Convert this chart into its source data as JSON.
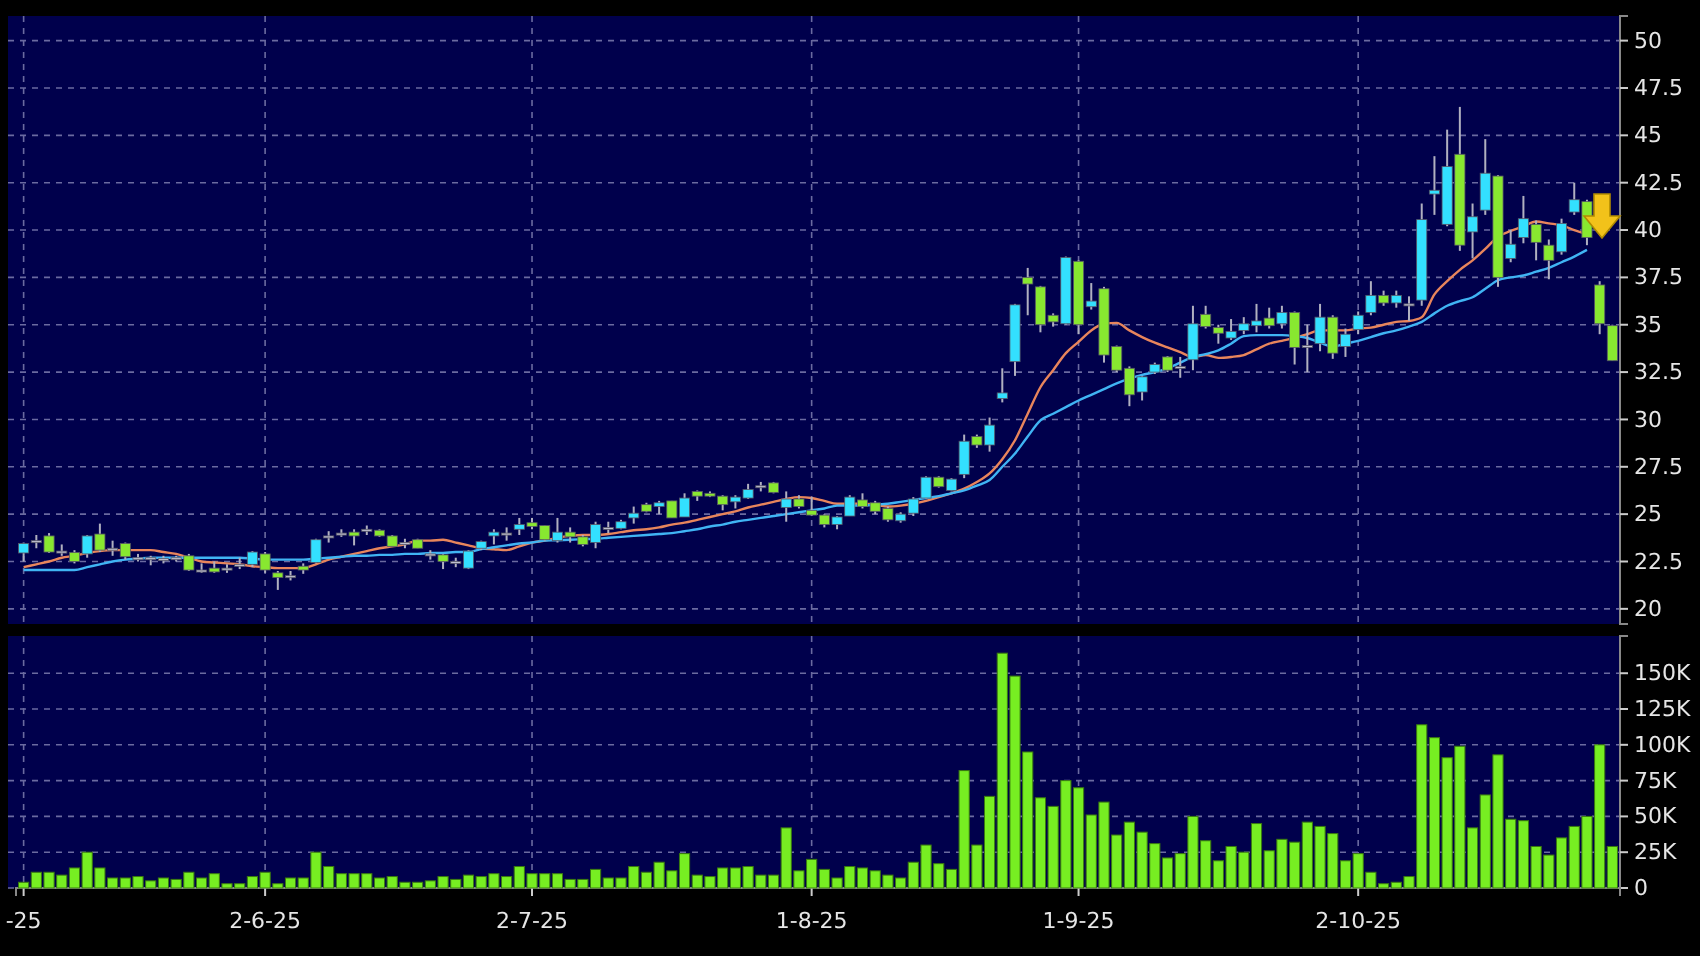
{
  "chart_data": [
    {
      "type": "candlestick",
      "tick_labels": "y",
      "grid": true,
      "categories": [
        null,
        null,
        null,
        null,
        null,
        null,
        null,
        null,
        null,
        null,
        null,
        null,
        null,
        null,
        null,
        null,
        null,
        null,
        null,
        null,
        null,
        null,
        null,
        null,
        null,
        null,
        null,
        null,
        null,
        null,
        null,
        null,
        null,
        null,
        null,
        null,
        null,
        null,
        null,
        null,
        null,
        null,
        null,
        null,
        null,
        null,
        null,
        null,
        null,
        null,
        null,
        null,
        null,
        null,
        null,
        null,
        null,
        null,
        null,
        null,
        null,
        null,
        null,
        null,
        null,
        null,
        null,
        null,
        null,
        null,
        null,
        null,
        null,
        null,
        null,
        null,
        null,
        null,
        null,
        null,
        null,
        null,
        null,
        null,
        null,
        null,
        null,
        null,
        null,
        null,
        null,
        null,
        null,
        null,
        null,
        null,
        null,
        null,
        null,
        null,
        null,
        null,
        null,
        null,
        null,
        null,
        null,
        null,
        null,
        null,
        null,
        null,
        null,
        null,
        null,
        null,
        null,
        null,
        null,
        null,
        null,
        null,
        null,
        null,
        null,
        null
      ],
      "ohlc": [
        [
          22.95,
          23.5,
          22.5,
          23.45
        ],
        [
          23.6,
          23.9,
          23.2,
          23.6
        ],
        [
          23.85,
          24.0,
          22.95,
          23.0
        ],
        [
          23.05,
          23.4,
          22.8,
          23.05
        ],
        [
          22.98,
          23.1,
          22.4,
          22.5
        ],
        [
          22.9,
          23.9,
          22.7,
          23.85
        ],
        [
          23.95,
          24.5,
          23.0,
          23.1
        ],
        [
          23.2,
          23.6,
          22.8,
          23.2
        ],
        [
          23.45,
          23.5,
          22.6,
          22.75
        ],
        [
          22.7,
          22.9,
          22.5,
          22.7
        ],
        [
          22.7,
          22.8,
          22.3,
          22.7
        ],
        [
          22.65,
          22.8,
          22.4,
          22.65
        ],
        [
          22.7,
          22.8,
          22.5,
          22.7
        ],
        [
          22.8,
          22.9,
          22.0,
          22.05
        ],
        [
          22.05,
          22.4,
          21.9,
          22.05
        ],
        [
          22.15,
          22.5,
          21.9,
          21.95
        ],
        [
          22.15,
          22.35,
          21.9,
          22.15
        ],
        [
          22.35,
          22.7,
          22.1,
          22.35
        ],
        [
          22.35,
          23.05,
          22.2,
          23.0
        ],
        [
          22.9,
          23.0,
          21.9,
          22.05
        ],
        [
          21.9,
          22.0,
          21.0,
          21.65
        ],
        [
          21.75,
          22.0,
          21.5,
          21.75
        ],
        [
          22.25,
          22.4,
          21.85,
          22.05
        ],
        [
          22.45,
          23.7,
          22.4,
          23.65
        ],
        [
          23.85,
          24.1,
          23.5,
          23.85
        ],
        [
          24.0,
          24.2,
          23.8,
          24.0
        ],
        [
          24.05,
          24.2,
          23.35,
          23.85
        ],
        [
          24.2,
          24.4,
          23.9,
          24.2
        ],
        [
          24.15,
          24.2,
          23.8,
          23.85
        ],
        [
          23.85,
          23.9,
          23.3,
          23.3
        ],
        [
          23.5,
          23.7,
          23.2,
          23.5
        ],
        [
          23.65,
          23.7,
          23.2,
          23.2
        ],
        [
          22.9,
          23.1,
          22.6,
          22.9
        ],
        [
          22.85,
          22.9,
          22.1,
          22.5
        ],
        [
          22.5,
          22.7,
          22.2,
          22.5
        ],
        [
          22.15,
          23.1,
          22.1,
          23.05
        ],
        [
          23.2,
          23.6,
          23.1,
          23.55
        ],
        [
          23.85,
          24.2,
          23.4,
          24.05
        ],
        [
          24.0,
          24.3,
          23.6,
          24.0
        ],
        [
          24.2,
          24.8,
          23.9,
          24.45
        ],
        [
          24.55,
          24.8,
          24.2,
          24.35
        ],
        [
          24.4,
          24.4,
          23.6,
          23.65
        ],
        [
          23.6,
          24.8,
          23.5,
          24.05
        ],
        [
          24.05,
          24.3,
          23.5,
          23.8
        ],
        [
          23.8,
          23.9,
          23.3,
          23.4
        ],
        [
          23.5,
          24.6,
          23.2,
          24.45
        ],
        [
          24.3,
          24.6,
          24.0,
          24.3
        ],
        [
          24.25,
          24.7,
          24.2,
          24.6
        ],
        [
          24.8,
          25.4,
          24.5,
          25.05
        ],
        [
          25.5,
          25.6,
          25.1,
          25.15
        ],
        [
          25.4,
          25.7,
          25.0,
          25.6
        ],
        [
          25.7,
          25.7,
          24.8,
          24.8
        ],
        [
          24.85,
          26.1,
          24.85,
          25.85
        ],
        [
          26.2,
          26.25,
          25.7,
          25.95
        ],
        [
          26.1,
          26.2,
          25.9,
          25.95
        ],
        [
          25.95,
          26.0,
          25.2,
          25.5
        ],
        [
          25.65,
          26.0,
          25.3,
          25.9
        ],
        [
          25.85,
          26.6,
          25.8,
          26.3
        ],
        [
          26.5,
          26.7,
          26.2,
          26.5
        ],
        [
          26.65,
          26.7,
          26.1,
          26.15
        ],
        [
          25.35,
          26.2,
          24.6,
          25.8
        ],
        [
          25.8,
          26.0,
          25.3,
          25.4
        ],
        [
          25.2,
          25.9,
          24.9,
          24.95
        ],
        [
          24.95,
          25.0,
          24.3,
          24.45
        ],
        [
          24.45,
          24.9,
          24.2,
          24.85
        ],
        [
          24.9,
          26.0,
          24.9,
          25.9
        ],
        [
          25.75,
          26.1,
          25.3,
          25.4
        ],
        [
          25.6,
          25.7,
          25.0,
          25.15
        ],
        [
          25.3,
          25.4,
          24.6,
          24.7
        ],
        [
          24.65,
          25.1,
          24.55,
          25.0
        ],
        [
          25.05,
          25.9,
          24.9,
          25.8
        ],
        [
          25.85,
          27.0,
          25.8,
          26.95
        ],
        [
          26.95,
          27.0,
          26.4,
          26.45
        ],
        [
          26.25,
          26.9,
          26.2,
          26.85
        ],
        [
          27.1,
          29.2,
          26.9,
          28.85
        ],
        [
          29.1,
          29.2,
          28.5,
          28.65
        ],
        [
          28.65,
          30.1,
          28.3,
          29.7
        ],
        [
          31.1,
          32.7,
          30.9,
          31.4
        ],
        [
          33.05,
          36.1,
          32.3,
          36.05
        ],
        [
          37.5,
          38.0,
          35.5,
          37.15
        ],
        [
          37.0,
          37.05,
          34.6,
          35.0
        ],
        [
          35.5,
          35.6,
          34.9,
          35.15
        ],
        [
          35.05,
          38.6,
          35.0,
          38.55
        ],
        [
          38.35,
          38.4,
          34.5,
          35.0
        ],
        [
          35.95,
          37.2,
          35.8,
          36.25
        ],
        [
          36.9,
          37.0,
          33.0,
          33.4
        ],
        [
          33.85,
          33.9,
          32.5,
          32.6
        ],
        [
          32.7,
          32.8,
          30.7,
          31.3
        ],
        [
          31.45,
          32.3,
          31.0,
          32.25
        ],
        [
          32.5,
          33.0,
          32.4,
          32.9
        ],
        [
          33.3,
          33.35,
          32.5,
          32.6
        ],
        [
          32.8,
          33.3,
          32.2,
          32.8
        ],
        [
          33.15,
          36.0,
          32.6,
          35.05
        ],
        [
          35.55,
          36.0,
          34.8,
          34.9
        ],
        [
          34.85,
          35.0,
          34.0,
          34.55
        ],
        [
          34.3,
          35.3,
          34.2,
          34.65
        ],
        [
          34.7,
          35.4,
          34.5,
          35.05
        ],
        [
          34.95,
          36.1,
          34.6,
          35.2
        ],
        [
          35.35,
          35.9,
          34.8,
          34.95
        ],
        [
          35.05,
          36.0,
          34.8,
          35.65
        ],
        [
          35.65,
          35.7,
          32.9,
          33.8
        ],
        [
          33.9,
          35.0,
          32.5,
          33.9
        ],
        [
          34.0,
          36.1,
          33.6,
          35.4
        ],
        [
          35.4,
          35.5,
          33.2,
          33.5
        ],
        [
          33.85,
          34.8,
          33.3,
          34.5
        ],
        [
          34.75,
          35.7,
          34.5,
          35.5
        ],
        [
          35.65,
          37.3,
          35.5,
          36.55
        ],
        [
          36.55,
          36.8,
          36.0,
          36.15
        ],
        [
          36.15,
          36.8,
          35.9,
          36.55
        ],
        [
          36.1,
          36.5,
          35.2,
          36.1
        ],
        [
          36.3,
          41.4,
          36.0,
          40.55
        ],
        [
          41.9,
          43.9,
          40.8,
          42.1
        ],
        [
          40.3,
          45.3,
          40.2,
          43.35
        ],
        [
          44.0,
          46.5,
          38.9,
          39.2
        ],
        [
          39.9,
          41.4,
          38.5,
          40.7
        ],
        [
          41.05,
          44.8,
          40.8,
          43.0
        ],
        [
          42.85,
          42.9,
          37.0,
          37.5
        ],
        [
          38.5,
          40.0,
          38.3,
          39.25
        ],
        [
          39.6,
          41.8,
          39.3,
          40.6
        ],
        [
          40.3,
          40.5,
          38.4,
          39.35
        ],
        [
          39.2,
          39.5,
          37.4,
          38.4
        ],
        [
          38.85,
          40.6,
          38.7,
          40.35
        ],
        [
          40.95,
          42.5,
          40.8,
          41.6
        ],
        [
          41.5,
          41.6,
          39.2,
          39.6
        ],
        [
          37.1,
          37.3,
          34.5,
          35.05
        ],
        [
          34.95,
          35.0,
          33.1,
          33.1
        ]
      ],
      "colors": [
        "#33e0ff",
        "#c0c0d0",
        "#88e830",
        "#c0c0d0",
        "#88e830",
        "#33e0ff",
        "#88e830",
        "#c0c0d0",
        "#88e830",
        "#c0c0d0",
        "#c0c0d0",
        "#c0c0d0",
        "#c0c0d0",
        "#88e830",
        "#c0c0d0",
        "#88e830",
        "#c0c0d0",
        "#c0c0d0",
        "#33e0ff",
        "#88e830",
        "#88e830",
        "#c0c0d0",
        "#88e830",
        "#33e0ff",
        "#c0c0d0",
        "#c0c0d0",
        "#88e830",
        "#c0c0d0",
        "#88e830",
        "#88e830",
        "#c0c0d0",
        "#88e830",
        "#c0c0d0",
        "#88e830",
        "#c0c0d0",
        "#33e0ff",
        "#33e0ff",
        "#33e0ff",
        "#c0c0d0",
        "#33e0ff",
        "#88e830",
        "#88e830",
        "#33e0ff",
        "#88e830",
        "#88e830",
        "#33e0ff",
        "#c0c0d0",
        "#33e0ff",
        "#33e0ff",
        "#88e830",
        "#33e0ff",
        "#88e830",
        "#33e0ff",
        "#88e830",
        "#88e830",
        "#88e830",
        "#33e0ff",
        "#33e0ff",
        "#c0c0d0",
        "#88e830",
        "#33e0ff",
        "#88e830",
        "#88e830",
        "#88e830",
        "#33e0ff",
        "#33e0ff",
        "#88e830",
        "#88e830",
        "#88e830",
        "#33e0ff",
        "#33e0ff",
        "#33e0ff",
        "#88e830",
        "#33e0ff",
        "#33e0ff",
        "#88e830",
        "#33e0ff",
        "#33e0ff",
        "#33e0ff",
        "#88e830",
        "#88e830",
        "#88e830",
        "#33e0ff",
        "#88e830",
        "#33e0ff",
        "#88e830",
        "#88e830",
        "#88e830",
        "#33e0ff",
        "#33e0ff",
        "#88e830",
        "#c0c0d0",
        "#33e0ff",
        "#88e830",
        "#88e830",
        "#33e0ff",
        "#33e0ff",
        "#33e0ff",
        "#88e830",
        "#33e0ff",
        "#88e830",
        "#c0c0d0",
        "#33e0ff",
        "#88e830",
        "#33e0ff",
        "#33e0ff",
        "#33e0ff",
        "#88e830",
        "#33e0ff",
        "#c0c0d0",
        "#33e0ff",
        "#33e0ff",
        "#33e0ff",
        "#88e830",
        "#33e0ff",
        "#33e0ff",
        "#88e830",
        "#33e0ff",
        "#33e0ff",
        "#88e830",
        "#88e830",
        "#33e0ff",
        "#33e0ff",
        "#88e830",
        "#88e830",
        "#88e830"
      ],
      "series": [
        {
          "type": "line",
          "color": "#e8855c",
          "values": [
            22.2,
            22.35,
            22.5,
            22.7,
            22.8,
            22.95,
            23.05,
            23.1,
            23.1,
            23.1,
            23.1,
            23.0,
            22.9,
            22.7,
            22.5,
            22.45,
            22.4,
            22.35,
            22.25,
            22.2,
            22.15,
            22.15,
            22.15,
            22.35,
            22.6,
            22.75,
            22.9,
            23.05,
            23.2,
            23.3,
            23.4,
            23.6,
            23.6,
            23.65,
            23.5,
            23.35,
            23.2,
            23.15,
            23.1,
            23.3,
            23.5,
            23.6,
            23.75,
            23.85,
            23.9,
            23.9,
            23.95,
            24.05,
            24.15,
            24.2,
            24.3,
            24.45,
            24.55,
            24.7,
            24.85,
            25.0,
            25.15,
            25.35,
            25.5,
            25.65,
            25.8,
            25.9,
            25.85,
            25.7,
            25.55,
            25.55,
            25.55,
            25.5,
            25.4,
            25.45,
            25.55,
            25.7,
            25.9,
            26.1,
            26.35,
            26.7,
            27.15,
            27.9,
            28.9,
            30.3,
            31.7,
            32.6,
            33.5,
            34.1,
            34.7,
            35.05,
            35.1,
            34.7,
            34.35,
            34.05,
            33.8,
            33.55,
            33.3,
            33.4,
            33.25,
            33.3,
            33.4,
            33.7,
            34.0,
            34.15,
            34.3,
            34.5,
            34.7,
            34.7,
            34.7,
            34.8,
            34.85,
            35.0,
            35.15,
            35.2,
            35.4,
            36.6,
            37.3,
            37.9,
            38.4,
            39.0,
            39.65,
            39.95,
            40.2,
            40.45,
            40.35,
            40.25,
            40.0,
            39.8,
            null,
            null
          ]
        },
        {
          "type": "line",
          "color": "#40b4f4",
          "values": [
            22.05,
            22.05,
            22.05,
            22.05,
            22.05,
            22.2,
            22.35,
            22.5,
            22.6,
            22.65,
            22.7,
            22.7,
            22.7,
            22.7,
            22.7,
            22.7,
            22.7,
            22.7,
            22.65,
            22.6,
            22.6,
            22.6,
            22.6,
            22.65,
            22.7,
            22.75,
            22.8,
            22.8,
            22.85,
            22.85,
            22.9,
            22.9,
            22.95,
            22.95,
            23.0,
            23.0,
            23.15,
            23.25,
            23.35,
            23.45,
            23.5,
            23.6,
            23.62,
            23.65,
            23.68,
            23.7,
            23.75,
            23.8,
            23.85,
            23.9,
            23.95,
            24.0,
            24.1,
            24.2,
            24.35,
            24.45,
            24.6,
            24.7,
            24.8,
            24.9,
            25.0,
            25.1,
            25.2,
            25.3,
            25.45,
            25.45,
            25.45,
            25.5,
            25.55,
            25.65,
            25.75,
            25.85,
            25.95,
            26.1,
            26.25,
            26.5,
            26.8,
            27.5,
            28.2,
            29.1,
            29.95,
            30.3,
            30.65,
            31.0,
            31.3,
            31.6,
            31.9,
            32.15,
            32.35,
            32.5,
            32.7,
            33.0,
            33.3,
            33.45,
            33.65,
            34.0,
            34.4,
            34.45,
            34.45,
            34.45,
            34.4,
            34.3,
            34.05,
            33.85,
            34.0,
            34.15,
            34.35,
            34.55,
            34.7,
            34.9,
            35.15,
            35.6,
            36.0,
            36.25,
            36.45,
            36.9,
            37.35,
            37.5,
            37.6,
            37.8,
            38.0,
            38.3,
            38.6,
            38.95,
            null,
            null
          ]
        }
      ],
      "ylim": [
        19.2,
        51.3
      ],
      "yticks": [
        20,
        22.5,
        25,
        27.5,
        30,
        32.5,
        35,
        37.5,
        40,
        42.5,
        45,
        47.5,
        50
      ]
    },
    {
      "type": "bar",
      "grid": true,
      "color": "#77ee22",
      "categories": [
        "-25",
        null,
        null,
        null,
        null,
        null,
        null,
        null,
        null,
        null,
        null,
        null,
        null,
        null,
        null,
        null,
        null,
        null,
        null,
        "2-6-25",
        null,
        null,
        null,
        null,
        null,
        null,
        null,
        null,
        null,
        null,
        null,
        null,
        null,
        null,
        null,
        null,
        null,
        null,
        null,
        null,
        "2-7-25",
        null,
        null,
        null,
        null,
        null,
        null,
        null,
        null,
        null,
        null,
        null,
        null,
        null,
        null,
        null,
        null,
        null,
        null,
        null,
        null,
        null,
        "1-8-25",
        null,
        null,
        null,
        null,
        null,
        null,
        null,
        null,
        null,
        null,
        null,
        null,
        null,
        null,
        null,
        null,
        null,
        null,
        null,
        null,
        "1-9-25",
        null,
        null,
        null,
        null,
        null,
        null,
        null,
        null,
        null,
        null,
        null,
        null,
        null,
        null,
        null,
        null,
        null,
        null,
        null,
        null,
        null,
        "2-10-25",
        null,
        null,
        null,
        null,
        null,
        null,
        null,
        null,
        null,
        null,
        null,
        null,
        null,
        null,
        null,
        null,
        null,
        null,
        null,
        null
      ],
      "values": [
        4000,
        11000,
        11000,
        9000,
        14000,
        25000,
        14000,
        7000,
        7000,
        8000,
        5000,
        7000,
        6000,
        11000,
        7000,
        10000,
        3000,
        3000,
        8000,
        11000,
        3000,
        7000,
        7000,
        25000,
        15000,
        10000,
        10000,
        10000,
        7000,
        8000,
        4000,
        4000,
        5000,
        8000,
        6000,
        9000,
        8000,
        10000,
        8000,
        15000,
        10000,
        10000,
        10000,
        6000,
        6000,
        13000,
        7000,
        7000,
        15000,
        11000,
        18000,
        12000,
        24000,
        9000,
        8000,
        14000,
        14000,
        15000,
        9000,
        9000,
        42000,
        12000,
        20000,
        13000,
        7000,
        15000,
        14000,
        12000,
        9000,
        7000,
        18000,
        30000,
        17000,
        13000,
        82000,
        30000,
        64000,
        164000,
        148000,
        95000,
        63000,
        57000,
        75000,
        70000,
        51000,
        60000,
        37000,
        46000,
        39000,
        31000,
        21000,
        24000,
        50000,
        33000,
        19000,
        29000,
        25000,
        45000,
        26000,
        34000,
        32000,
        46000,
        43000,
        38000,
        19000,
        24000,
        11000,
        3000,
        4000,
        8000,
        114000,
        105000,
        91000,
        99000,
        42000,
        65000,
        93000,
        48000,
        47000,
        29000,
        23000,
        35000,
        43000,
        50000,
        100000,
        29000
      ],
      "ylim": [
        0,
        176000
      ],
      "yticks": [
        0,
        {
          "value": 25000,
          "label": "25K"
        },
        {
          "value": 50000,
          "label": "50K"
        },
        {
          "value": 75000,
          "label": "75K"
        },
        {
          "value": 100000,
          "label": "100K"
        },
        {
          "value": 125000,
          "label": "125K"
        },
        {
          "value": 150000,
          "label": "150K"
        }
      ]
    }
  ]
}
